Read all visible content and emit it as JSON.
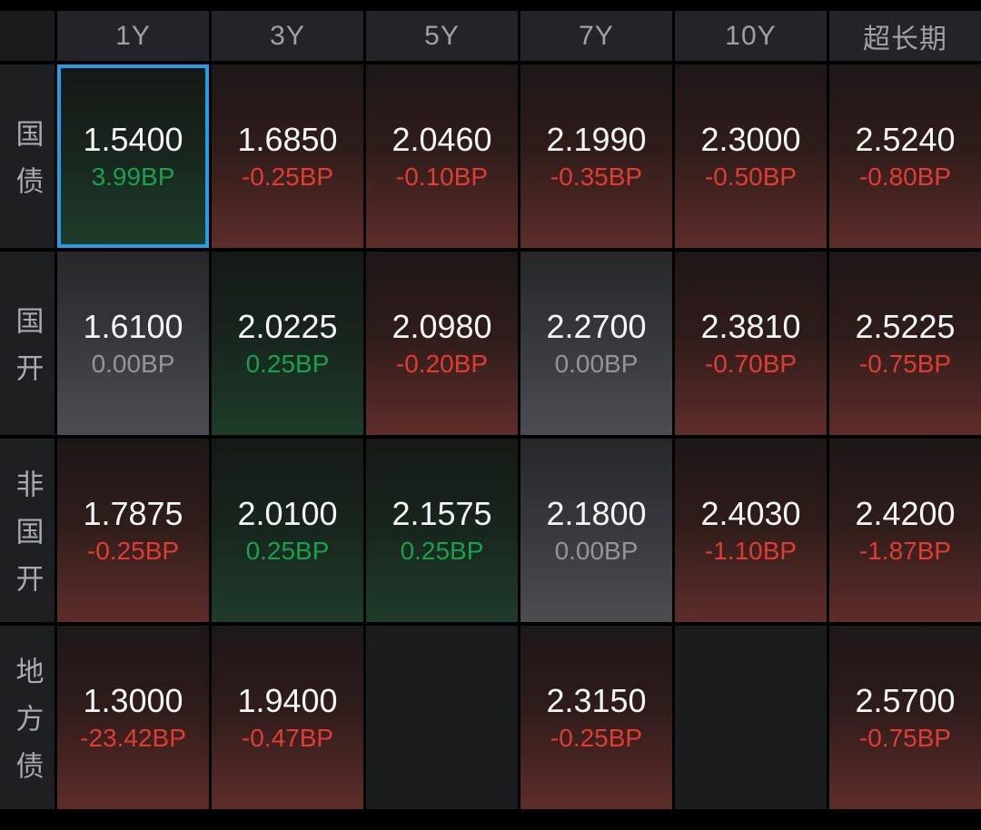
{
  "colors": {
    "background": "#000000",
    "header_bg": "#232427",
    "header_text": "#9EA2A8",
    "label_text": "#A7ABAF",
    "value_text": "#F4F5F5",
    "up_green": "#17A14E",
    "down_red": "#E23B31",
    "flat_gray": "#939699",
    "selection_border_blue": "#259CE8",
    "cell_down_gradient_bottom": "#5E2D2A",
    "cell_up_gradient_bottom": "#1E3C2A",
    "cell_flat_gradient_bottom": "#4C4D50"
  },
  "table": {
    "columns": [
      "1Y",
      "3Y",
      "5Y",
      "7Y",
      "10Y",
      "超长期"
    ],
    "rows": [
      {
        "label": "国债",
        "cells": [
          {
            "value": "1.5400",
            "change": "3.99BP",
            "direction": "up",
            "selected": true
          },
          {
            "value": "1.6850",
            "change": "-0.25BP",
            "direction": "down"
          },
          {
            "value": "2.0460",
            "change": "-0.10BP",
            "direction": "down"
          },
          {
            "value": "2.1990",
            "change": "-0.35BP",
            "direction": "down"
          },
          {
            "value": "2.3000",
            "change": "-0.50BP",
            "direction": "down"
          },
          {
            "value": "2.5240",
            "change": "-0.80BP",
            "direction": "down"
          }
        ]
      },
      {
        "label": "国开",
        "cells": [
          {
            "value": "1.6100",
            "change": "0.00BP",
            "direction": "flat"
          },
          {
            "value": "2.0225",
            "change": "0.25BP",
            "direction": "up"
          },
          {
            "value": "2.0980",
            "change": "-0.20BP",
            "direction": "down"
          },
          {
            "value": "2.2700",
            "change": "0.00BP",
            "direction": "flat"
          },
          {
            "value": "2.3810",
            "change": "-0.70BP",
            "direction": "down"
          },
          {
            "value": "2.5225",
            "change": "-0.75BP",
            "direction": "down"
          }
        ]
      },
      {
        "label": "非国开",
        "cells": [
          {
            "value": "1.7875",
            "change": "-0.25BP",
            "direction": "down"
          },
          {
            "value": "2.0100",
            "change": "0.25BP",
            "direction": "up"
          },
          {
            "value": "2.1575",
            "change": "0.25BP",
            "direction": "up"
          },
          {
            "value": "2.1800",
            "change": "0.00BP",
            "direction": "flat"
          },
          {
            "value": "2.4030",
            "change": "-1.10BP",
            "direction": "down"
          },
          {
            "value": "2.4200",
            "change": "-1.87BP",
            "direction": "down"
          }
        ]
      },
      {
        "label": "地方债",
        "cells": [
          {
            "value": "1.3000",
            "change": "-23.42BP",
            "direction": "down"
          },
          {
            "value": "1.9400",
            "change": "-0.47BP",
            "direction": "down"
          },
          {
            "empty": true
          },
          {
            "value": "2.3150",
            "change": "-0.25BP",
            "direction": "down"
          },
          {
            "empty": true
          },
          {
            "value": "2.5700",
            "change": "-0.75BP",
            "direction": "down"
          }
        ]
      }
    ]
  }
}
